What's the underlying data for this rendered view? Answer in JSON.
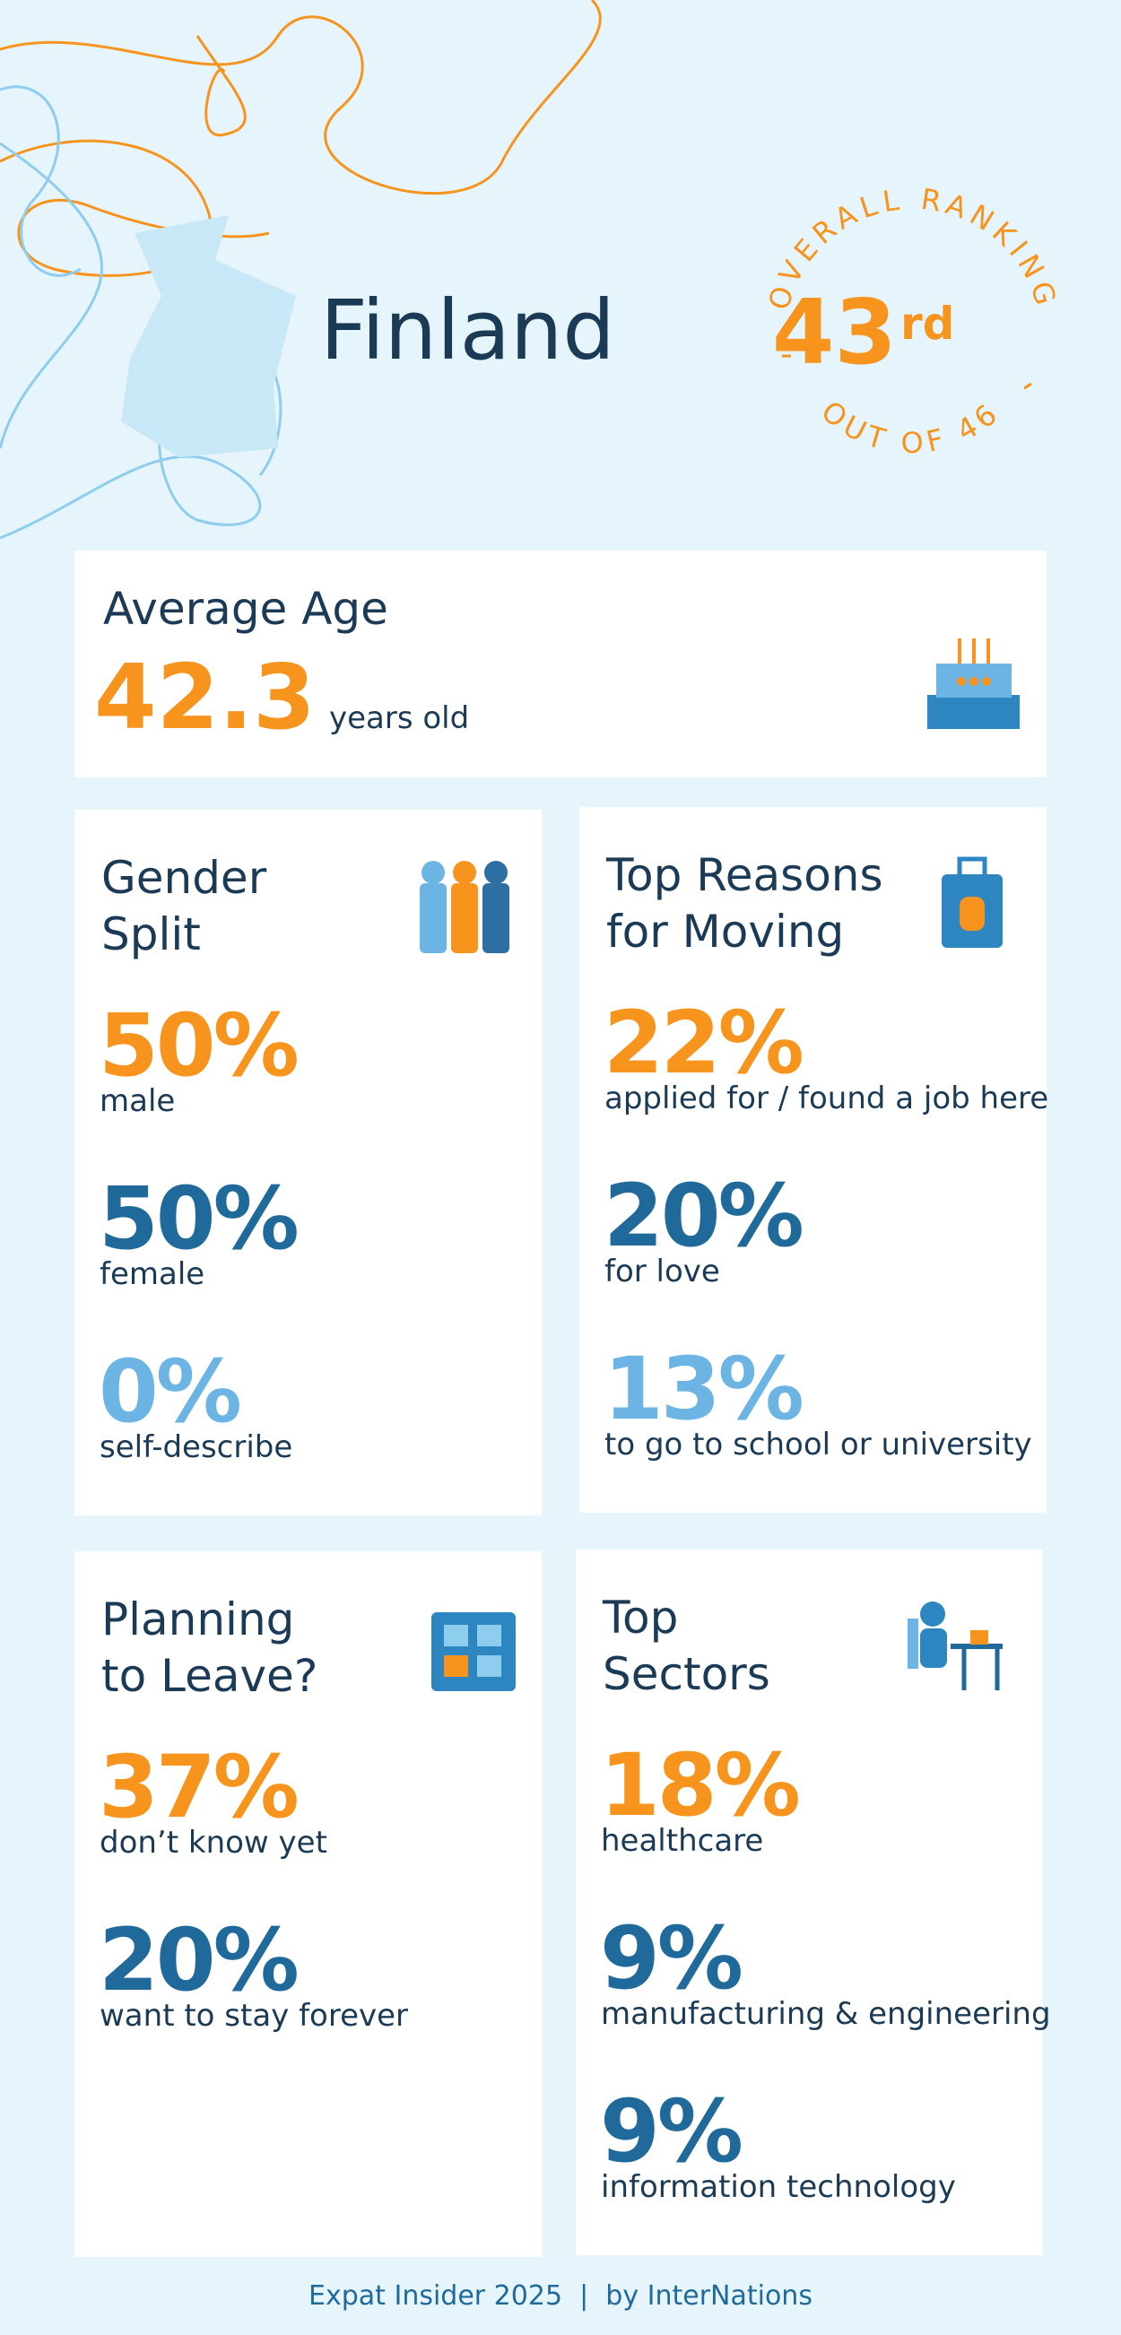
{
  "header": {
    "title": "Finland",
    "ranking": {
      "label": "OVERALL RANKING",
      "rank": "43",
      "suffix": "rd",
      "out_of": "OUT OF 46"
    }
  },
  "average_age": {
    "title": "Average Age",
    "value": "42.3",
    "unit": "years old"
  },
  "cards": [
    {
      "title_lines": [
        "Gender",
        "Split"
      ],
      "items": [
        {
          "value": "50%",
          "label": "male",
          "color": "#f7941d"
        },
        {
          "value": "50%",
          "label": "female",
          "color": "#1f6a9a"
        },
        {
          "value": "0%",
          "label": "self-describe",
          "color": "#6cb4e4"
        }
      ]
    },
    {
      "title_lines": [
        "Top Reasons",
        "for Moving"
      ],
      "items": [
        {
          "value": "22%",
          "label": "applied for / found a job here",
          "color": "#f7941d"
        },
        {
          "value": "20%",
          "label": "for love",
          "color": "#1f6a9a"
        },
        {
          "value": "13%",
          "label": "to go to school or university",
          "color": "#6cb4e4"
        }
      ]
    },
    {
      "title_lines": [
        "Planning",
        "to Leave?"
      ],
      "items": [
        {
          "value": "37%",
          "label": "don’t know yet",
          "color": "#f7941d"
        },
        {
          "value": "20%",
          "label": "want to stay forever",
          "color": "#1f6a9a"
        }
      ]
    },
    {
      "title_lines": [
        "Top",
        "Sectors"
      ],
      "items": [
        {
          "value": "18%",
          "label": "healthcare",
          "color": "#f7941d"
        },
        {
          "value": "9%",
          "label": "manufacturing & engineering",
          "color": "#1f6a9a"
        },
        {
          "value": "9%",
          "label": "information technology",
          "color": "#1f6a9a"
        }
      ]
    }
  ],
  "footer": "Expat Insider 2025  |  by InterNations"
}
